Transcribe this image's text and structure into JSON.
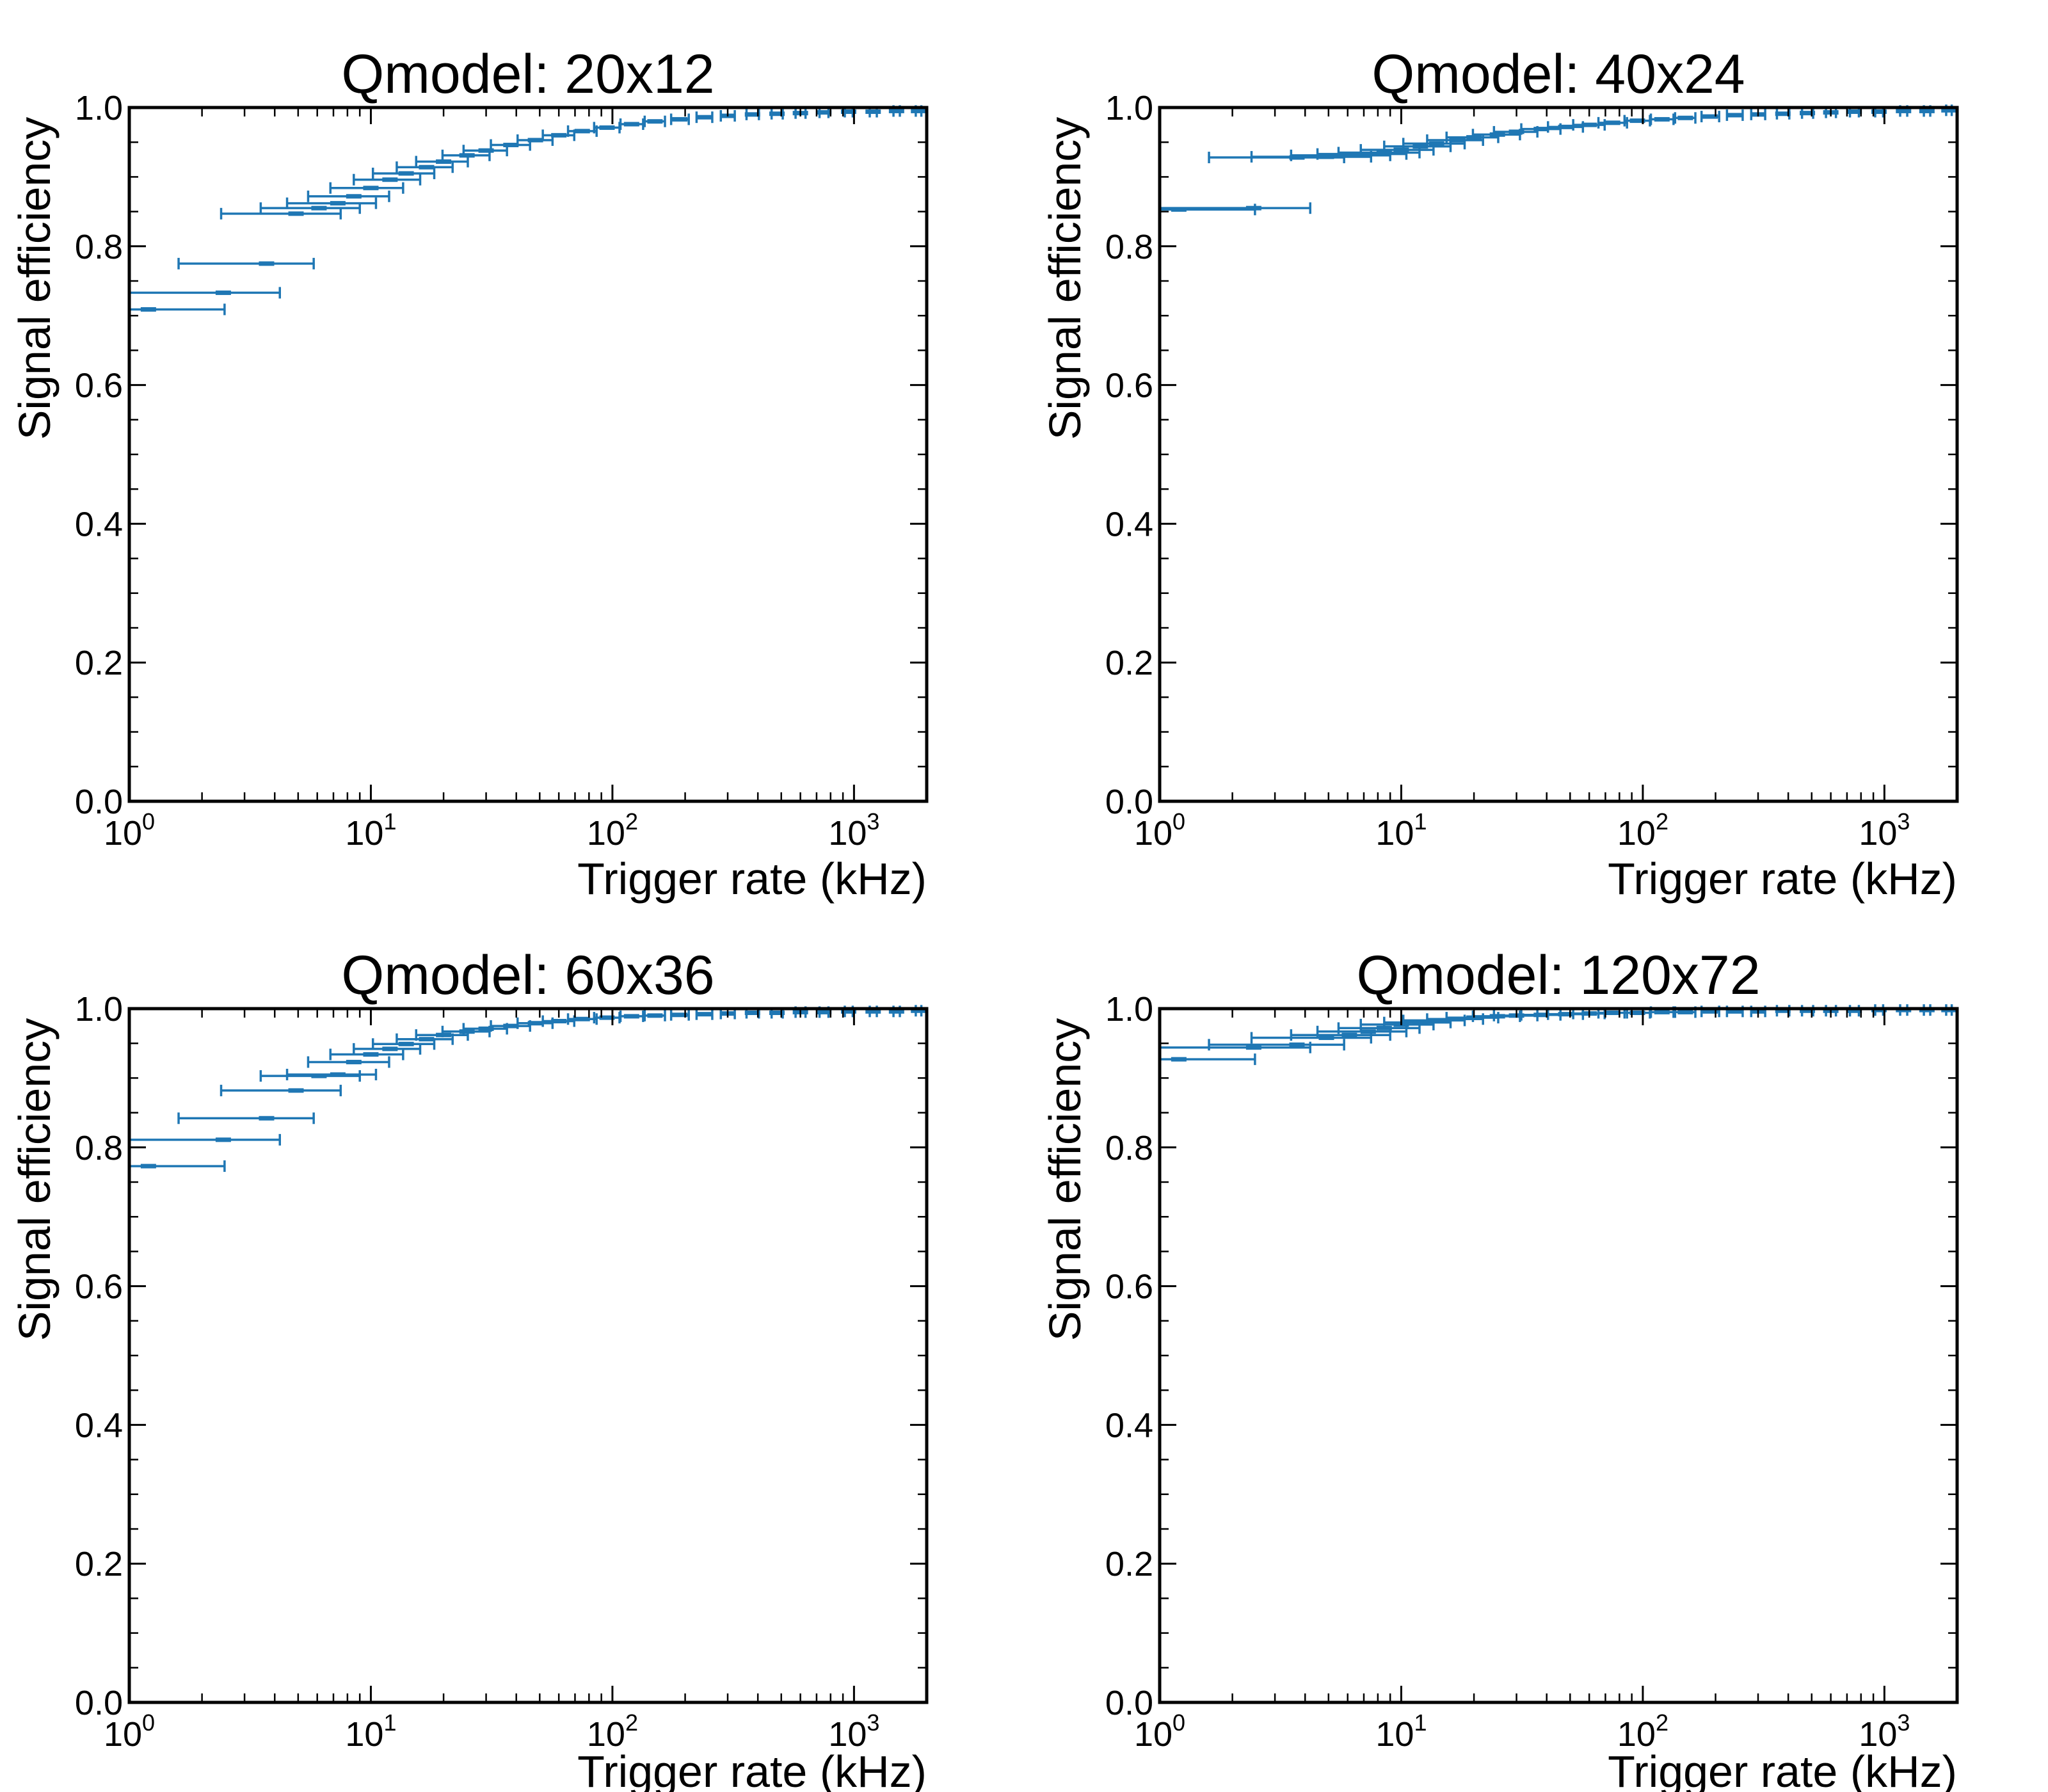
{
  "figure": {
    "color": "#1f77b4"
  },
  "chart_data": [
    {
      "type": "scatter",
      "title": "Qmodel: 20x12",
      "xlabel": "Trigger rate (kHz)",
      "ylabel": "Signal efficiency",
      "xscale": "log",
      "xlim": [
        1,
        2000
      ],
      "ylim": [
        0.0,
        1.0
      ],
      "xticks": [
        1,
        10,
        100,
        1000
      ],
      "xtick_labels": [
        {
          "base": "10",
          "exp": "0"
        },
        {
          "base": "10",
          "exp": "1"
        },
        {
          "base": "10",
          "exp": "2"
        },
        {
          "base": "10",
          "exp": "3"
        }
      ],
      "yticks": [
        "0.0",
        "0.2",
        "0.4",
        "0.6",
        "0.8",
        "1.0"
      ],
      "grid": false,
      "error_bars": "horizontal",
      "points": [
        {
          "x": 1.2,
          "y": 0.709,
          "xerr_low": 0.2,
          "xerr_high": 1.28
        },
        {
          "x": 2.45,
          "y": 0.733,
          "xerr_low": 1.45,
          "xerr_high": 1.75
        },
        {
          "x": 3.7,
          "y": 0.775,
          "xerr_low": 2.1,
          "xerr_high": 2.1
        },
        {
          "x": 4.9,
          "y": 0.847,
          "xerr_low": 2.5,
          "xerr_high": 2.6
        },
        {
          "x": 6.1,
          "y": 0.855,
          "xerr_low": 2.6,
          "xerr_high": 2.9
        },
        {
          "x": 7.3,
          "y": 0.862,
          "xerr_low": 2.8,
          "xerr_high": 3.2
        },
        {
          "x": 8.5,
          "y": 0.872,
          "xerr_low": 3.0,
          "xerr_high": 3.4
        },
        {
          "x": 10,
          "y": 0.884,
          "xerr_low": 3.2,
          "xerr_high": 3.6
        },
        {
          "x": 12,
          "y": 0.896,
          "xerr_low": 3.5,
          "xerr_high": 4.0
        },
        {
          "x": 14,
          "y": 0.905,
          "xerr_low": 3.8,
          "xerr_high": 4.3
        },
        {
          "x": 17,
          "y": 0.914,
          "xerr_low": 4.2,
          "xerr_high": 4.8
        },
        {
          "x": 20,
          "y": 0.922,
          "xerr_low": 4.6,
          "xerr_high": 5.2
        },
        {
          "x": 25,
          "y": 0.931,
          "xerr_low": 5.2,
          "xerr_high": 6.0
        },
        {
          "x": 30,
          "y": 0.938,
          "xerr_low": 5.8,
          "xerr_high": 6.6
        },
        {
          "x": 38,
          "y": 0.946,
          "xerr_low": 6.6,
          "xerr_high": 7.6
        },
        {
          "x": 48,
          "y": 0.953,
          "xerr_low": 7.5,
          "xerr_high": 8.5
        },
        {
          "x": 60,
          "y": 0.96,
          "xerr_low": 8.5,
          "xerr_high": 9.5
        },
        {
          "x": 75,
          "y": 0.966,
          "xerr_low": 9.5,
          "xerr_high": 11
        },
        {
          "x": 95,
          "y": 0.971,
          "xerr_low": 11,
          "xerr_high": 12
        },
        {
          "x": 120,
          "y": 0.976,
          "xerr_low": 12,
          "xerr_high": 14
        },
        {
          "x": 150,
          "y": 0.98,
          "xerr_low": 14,
          "xerr_high": 15
        },
        {
          "x": 190,
          "y": 0.983,
          "xerr_low": 15,
          "xerr_high": 17
        },
        {
          "x": 240,
          "y": 0.986,
          "xerr_low": 17,
          "xerr_high": 19
        },
        {
          "x": 300,
          "y": 0.988,
          "xerr_low": 19,
          "xerr_high": 21
        },
        {
          "x": 380,
          "y": 0.99,
          "xerr_low": 21,
          "xerr_high": 24
        },
        {
          "x": 480,
          "y": 0.991,
          "xerr_low": 24,
          "xerr_high": 27
        },
        {
          "x": 600,
          "y": 0.992,
          "xerr_low": 27,
          "xerr_high": 30
        },
        {
          "x": 750,
          "y": 0.993,
          "xerr_low": 30,
          "xerr_high": 34
        },
        {
          "x": 950,
          "y": 0.994,
          "xerr_low": 34,
          "xerr_high": 38
        },
        {
          "x": 1200,
          "y": 0.994,
          "xerr_low": 38,
          "xerr_high": 43
        },
        {
          "x": 1500,
          "y": 0.995,
          "xerr_low": 43,
          "xerr_high": 48
        },
        {
          "x": 1850,
          "y": 0.995,
          "xerr_low": 48,
          "xerr_high": 50
        }
      ]
    },
    {
      "type": "scatter",
      "title": "Qmodel: 40x24",
      "xlabel": "Trigger rate (kHz)",
      "ylabel": "Signal efficiency",
      "xscale": "log",
      "xlim": [
        1,
        2000
      ],
      "ylim": [
        0.0,
        1.0
      ],
      "xticks": [
        1,
        10,
        100,
        1000
      ],
      "xtick_labels": [
        {
          "base": "10",
          "exp": "0"
        },
        {
          "base": "10",
          "exp": "1"
        },
        {
          "base": "10",
          "exp": "2"
        },
        {
          "base": "10",
          "exp": "3"
        }
      ],
      "yticks": [
        "0.0",
        "0.2",
        "0.4",
        "0.6",
        "0.8",
        "1.0"
      ],
      "grid": false,
      "error_bars": "horizontal",
      "points": [
        {
          "x": 1.2,
          "y": 0.853,
          "xerr_low": 0.2,
          "xerr_high": 1.28
        },
        {
          "x": 2.45,
          "y": 0.855,
          "xerr_low": 1.45,
          "xerr_high": 1.75
        },
        {
          "x": 3.7,
          "y": 0.928,
          "xerr_low": 2.1,
          "xerr_high": 2.1
        },
        {
          "x": 4.9,
          "y": 0.929,
          "xerr_low": 2.5,
          "xerr_high": 2.6
        },
        {
          "x": 6.1,
          "y": 0.931,
          "xerr_low": 2.6,
          "xerr_high": 2.9
        },
        {
          "x": 7.3,
          "y": 0.933,
          "xerr_low": 2.8,
          "xerr_high": 3.2
        },
        {
          "x": 8.5,
          "y": 0.935,
          "xerr_low": 3.0,
          "xerr_high": 3.4
        },
        {
          "x": 10,
          "y": 0.939,
          "xerr_low": 3.2,
          "xerr_high": 3.6
        },
        {
          "x": 12,
          "y": 0.944,
          "xerr_low": 3.5,
          "xerr_high": 4.0
        },
        {
          "x": 14,
          "y": 0.948,
          "xerr_low": 3.8,
          "xerr_high": 4.3
        },
        {
          "x": 17,
          "y": 0.953,
          "xerr_low": 4.2,
          "xerr_high": 4.8
        },
        {
          "x": 20,
          "y": 0.957,
          "xerr_low": 4.6,
          "xerr_high": 5.2
        },
        {
          "x": 25,
          "y": 0.961,
          "xerr_low": 5.2,
          "xerr_high": 6.0
        },
        {
          "x": 30,
          "y": 0.965,
          "xerr_low": 5.8,
          "xerr_high": 6.6
        },
        {
          "x": 38,
          "y": 0.969,
          "xerr_low": 6.6,
          "xerr_high": 7.6
        },
        {
          "x": 48,
          "y": 0.972,
          "xerr_low": 7.5,
          "xerr_high": 8.5
        },
        {
          "x": 60,
          "y": 0.975,
          "xerr_low": 8.5,
          "xerr_high": 9.5
        },
        {
          "x": 75,
          "y": 0.978,
          "xerr_low": 9.5,
          "xerr_high": 11
        },
        {
          "x": 95,
          "y": 0.981,
          "xerr_low": 11,
          "xerr_high": 12
        },
        {
          "x": 120,
          "y": 0.983,
          "xerr_low": 12,
          "xerr_high": 14
        },
        {
          "x": 150,
          "y": 0.985,
          "xerr_low": 14,
          "xerr_high": 15
        },
        {
          "x": 190,
          "y": 0.987,
          "xerr_low": 15,
          "xerr_high": 17
        },
        {
          "x": 240,
          "y": 0.989,
          "xerr_low": 17,
          "xerr_high": 19
        },
        {
          "x": 300,
          "y": 0.99,
          "xerr_low": 19,
          "xerr_high": 21
        },
        {
          "x": 380,
          "y": 0.991,
          "xerr_low": 21,
          "xerr_high": 24
        },
        {
          "x": 480,
          "y": 0.992,
          "xerr_low": 24,
          "xerr_high": 27
        },
        {
          "x": 600,
          "y": 0.993,
          "xerr_low": 27,
          "xerr_high": 30
        },
        {
          "x": 750,
          "y": 0.994,
          "xerr_low": 30,
          "xerr_high": 34
        },
        {
          "x": 950,
          "y": 0.994,
          "xerr_low": 34,
          "xerr_high": 38
        },
        {
          "x": 1200,
          "y": 0.995,
          "xerr_low": 38,
          "xerr_high": 43
        },
        {
          "x": 1500,
          "y": 0.995,
          "xerr_low": 43,
          "xerr_high": 48
        },
        {
          "x": 1850,
          "y": 0.996,
          "xerr_low": 48,
          "xerr_high": 50
        }
      ]
    },
    {
      "type": "scatter",
      "title": "Qmodel: 60x36",
      "xlabel": "Trigger rate (kHz)",
      "ylabel": "Signal efficiency",
      "xscale": "log",
      "xlim": [
        1,
        2000
      ],
      "ylim": [
        0.0,
        1.0
      ],
      "xticks": [
        1,
        10,
        100,
        1000
      ],
      "xtick_labels": [
        {
          "base": "10",
          "exp": "0"
        },
        {
          "base": "10",
          "exp": "1"
        },
        {
          "base": "10",
          "exp": "2"
        },
        {
          "base": "10",
          "exp": "3"
        }
      ],
      "yticks": [
        "0.0",
        "0.2",
        "0.4",
        "0.6",
        "0.8",
        "1.0"
      ],
      "grid": false,
      "error_bars": "horizontal",
      "points": [
        {
          "x": 1.2,
          "y": 0.773,
          "xerr_low": 0.2,
          "xerr_high": 1.28
        },
        {
          "x": 2.45,
          "y": 0.811,
          "xerr_low": 1.45,
          "xerr_high": 1.75
        },
        {
          "x": 3.7,
          "y": 0.842,
          "xerr_low": 2.1,
          "xerr_high": 2.1
        },
        {
          "x": 4.9,
          "y": 0.882,
          "xerr_low": 2.5,
          "xerr_high": 2.6
        },
        {
          "x": 6.1,
          "y": 0.903,
          "xerr_low": 2.6,
          "xerr_high": 2.9
        },
        {
          "x": 7.3,
          "y": 0.905,
          "xerr_low": 2.8,
          "xerr_high": 3.2
        },
        {
          "x": 8.5,
          "y": 0.923,
          "xerr_low": 3.0,
          "xerr_high": 3.4
        },
        {
          "x": 10,
          "y": 0.934,
          "xerr_low": 3.2,
          "xerr_high": 3.6
        },
        {
          "x": 12,
          "y": 0.942,
          "xerr_low": 3.5,
          "xerr_high": 4.0
        },
        {
          "x": 14,
          "y": 0.949,
          "xerr_low": 3.8,
          "xerr_high": 4.3
        },
        {
          "x": 17,
          "y": 0.956,
          "xerr_low": 4.2,
          "xerr_high": 4.8
        },
        {
          "x": 20,
          "y": 0.962,
          "xerr_low": 4.6,
          "xerr_high": 5.2
        },
        {
          "x": 25,
          "y": 0.967,
          "xerr_low": 5.2,
          "xerr_high": 6.0
        },
        {
          "x": 30,
          "y": 0.971,
          "xerr_low": 5.8,
          "xerr_high": 6.6
        },
        {
          "x": 38,
          "y": 0.975,
          "xerr_low": 6.6,
          "xerr_high": 7.6
        },
        {
          "x": 48,
          "y": 0.979,
          "xerr_low": 7.5,
          "xerr_high": 8.5
        },
        {
          "x": 60,
          "y": 0.982,
          "xerr_low": 8.5,
          "xerr_high": 9.5
        },
        {
          "x": 75,
          "y": 0.985,
          "xerr_low": 9.5,
          "xerr_high": 11
        },
        {
          "x": 95,
          "y": 0.987,
          "xerr_low": 11,
          "xerr_high": 12
        },
        {
          "x": 120,
          "y": 0.989,
          "xerr_low": 12,
          "xerr_high": 14
        },
        {
          "x": 150,
          "y": 0.99,
          "xerr_low": 14,
          "xerr_high": 15
        },
        {
          "x": 190,
          "y": 0.991,
          "xerr_low": 15,
          "xerr_high": 17
        },
        {
          "x": 240,
          "y": 0.992,
          "xerr_low": 17,
          "xerr_high": 19
        },
        {
          "x": 300,
          "y": 0.993,
          "xerr_low": 19,
          "xerr_high": 21
        },
        {
          "x": 380,
          "y": 0.994,
          "xerr_low": 21,
          "xerr_high": 24
        },
        {
          "x": 480,
          "y": 0.994,
          "xerr_low": 24,
          "xerr_high": 27
        },
        {
          "x": 600,
          "y": 0.995,
          "xerr_low": 27,
          "xerr_high": 30
        },
        {
          "x": 750,
          "y": 0.995,
          "xerr_low": 30,
          "xerr_high": 34
        },
        {
          "x": 950,
          "y": 0.996,
          "xerr_low": 34,
          "xerr_high": 38
        },
        {
          "x": 1200,
          "y": 0.996,
          "xerr_low": 38,
          "xerr_high": 43
        },
        {
          "x": 1500,
          "y": 0.996,
          "xerr_low": 43,
          "xerr_high": 48
        },
        {
          "x": 1850,
          "y": 0.997,
          "xerr_low": 48,
          "xerr_high": 50
        }
      ]
    },
    {
      "type": "scatter",
      "title": "Qmodel: 120x72",
      "xlabel": "Trigger rate (kHz)",
      "ylabel": "Signal efficiency",
      "xscale": "log",
      "xlim": [
        1,
        2000
      ],
      "ylim": [
        0.0,
        1.0
      ],
      "xticks": [
        1,
        10,
        100,
        1000
      ],
      "xtick_labels": [
        {
          "base": "10",
          "exp": "0"
        },
        {
          "base": "10",
          "exp": "1"
        },
        {
          "base": "10",
          "exp": "2"
        },
        {
          "base": "10",
          "exp": "3"
        }
      ],
      "yticks": [
        "0.0",
        "0.2",
        "0.4",
        "0.6",
        "0.8",
        "1.0"
      ],
      "grid": false,
      "error_bars": "horizontal",
      "points": [
        {
          "x": 1.2,
          "y": 0.927,
          "xerr_low": 0.2,
          "xerr_high": 1.28
        },
        {
          "x": 2.45,
          "y": 0.944,
          "xerr_low": 1.45,
          "xerr_high": 1.75
        },
        {
          "x": 3.7,
          "y": 0.948,
          "xerr_low": 2.1,
          "xerr_high": 2.1
        },
        {
          "x": 4.9,
          "y": 0.958,
          "xerr_low": 2.5,
          "xerr_high": 2.6
        },
        {
          "x": 6.1,
          "y": 0.962,
          "xerr_low": 2.6,
          "xerr_high": 2.9
        },
        {
          "x": 7.3,
          "y": 0.967,
          "xerr_low": 2.8,
          "xerr_high": 3.2
        },
        {
          "x": 8.5,
          "y": 0.972,
          "xerr_low": 3.0,
          "xerr_high": 3.4
        },
        {
          "x": 10,
          "y": 0.977,
          "xerr_low": 3.2,
          "xerr_high": 3.6
        },
        {
          "x": 12,
          "y": 0.98,
          "xerr_low": 3.5,
          "xerr_high": 4.0
        },
        {
          "x": 14,
          "y": 0.983,
          "xerr_low": 3.8,
          "xerr_high": 4.3
        },
        {
          "x": 17,
          "y": 0.985,
          "xerr_low": 4.2,
          "xerr_high": 4.8
        },
        {
          "x": 20,
          "y": 0.987,
          "xerr_low": 4.6,
          "xerr_high": 5.2
        },
        {
          "x": 25,
          "y": 0.989,
          "xerr_low": 5.2,
          "xerr_high": 6.0
        },
        {
          "x": 30,
          "y": 0.99,
          "xerr_low": 5.8,
          "xerr_high": 6.6
        },
        {
          "x": 38,
          "y": 0.991,
          "xerr_low": 6.6,
          "xerr_high": 7.6
        },
        {
          "x": 48,
          "y": 0.992,
          "xerr_low": 7.5,
          "xerr_high": 8.5
        },
        {
          "x": 60,
          "y": 0.993,
          "xerr_low": 8.5,
          "xerr_high": 9.5
        },
        {
          "x": 75,
          "y": 0.994,
          "xerr_low": 9.5,
          "xerr_high": 11
        },
        {
          "x": 95,
          "y": 0.994,
          "xerr_low": 11,
          "xerr_high": 12
        },
        {
          "x": 120,
          "y": 0.995,
          "xerr_low": 12,
          "xerr_high": 14
        },
        {
          "x": 150,
          "y": 0.995,
          "xerr_low": 14,
          "xerr_high": 15
        },
        {
          "x": 190,
          "y": 0.996,
          "xerr_low": 15,
          "xerr_high": 17
        },
        {
          "x": 240,
          "y": 0.996,
          "xerr_low": 17,
          "xerr_high": 19
        },
        {
          "x": 300,
          "y": 0.996,
          "xerr_low": 19,
          "xerr_high": 21
        },
        {
          "x": 380,
          "y": 0.997,
          "xerr_low": 21,
          "xerr_high": 24
        },
        {
          "x": 480,
          "y": 0.997,
          "xerr_low": 24,
          "xerr_high": 27
        },
        {
          "x": 600,
          "y": 0.997,
          "xerr_low": 27,
          "xerr_high": 30
        },
        {
          "x": 750,
          "y": 0.997,
          "xerr_low": 30,
          "xerr_high": 34
        },
        {
          "x": 950,
          "y": 0.998,
          "xerr_low": 34,
          "xerr_high": 38
        },
        {
          "x": 1200,
          "y": 0.998,
          "xerr_low": 38,
          "xerr_high": 43
        },
        {
          "x": 1500,
          "y": 0.998,
          "xerr_low": 43,
          "xerr_high": 48
        },
        {
          "x": 1850,
          "y": 0.998,
          "xerr_low": 48,
          "xerr_high": 50
        }
      ]
    }
  ]
}
